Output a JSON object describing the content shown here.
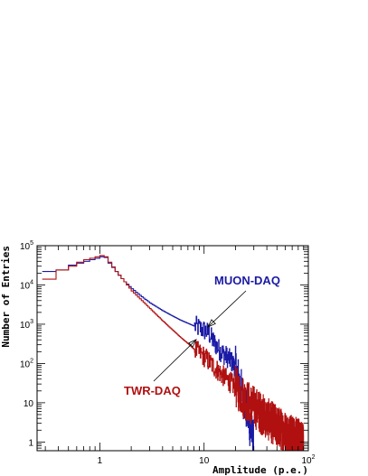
{
  "chart_data": {
    "type": "line",
    "title": "",
    "xlabel": "Amplitude (p.e.)",
    "ylabel": "Number of Entries",
    "x_scale": "log",
    "y_scale": "log",
    "xlim": [
      0.25,
      100
    ],
    "ylim": [
      0.6,
      100000
    ],
    "grid": false,
    "legend": "none",
    "x_tick_labels": [
      {
        "value": 1,
        "label": "1"
      },
      {
        "value": 10,
        "label": "10"
      },
      {
        "value": 100,
        "label": "10",
        "exp": "2"
      }
    ],
    "y_tick_labels": [
      {
        "value": 1,
        "label": "1"
      },
      {
        "value": 10,
        "label": "10"
      },
      {
        "value": 100,
        "label": "10",
        "exp": "2"
      },
      {
        "value": 1000,
        "label": "10",
        "exp": "3"
      },
      {
        "value": 10000,
        "label": "10",
        "exp": "4"
      },
      {
        "value": 100000,
        "label": "10",
        "exp": "5"
      }
    ],
    "series": [
      {
        "name": "MUON-DAQ",
        "color": "#1a1aa6",
        "x": [
          0.28,
          0.38,
          0.5,
          0.6,
          0.7,
          0.8,
          0.9,
          1.0,
          1.1,
          1.2,
          1.4,
          1.7,
          2.0,
          2.5,
          3.0,
          4.0,
          5.0,
          6.0,
          7.0,
          8.0,
          9.0,
          10.0,
          11.0,
          12.0,
          14.0,
          16.0,
          18.0,
          20.0,
          22.0,
          25.0,
          28.0,
          30.0
        ],
        "y": [
          22000,
          24000,
          32000,
          36000,
          40000,
          44000,
          48000,
          52000,
          50000,
          36000,
          22000,
          12000,
          8000,
          5000,
          3500,
          2200,
          1600,
          1250,
          1050,
          900,
          800,
          700,
          600,
          400,
          220,
          160,
          120,
          80,
          30,
          8,
          2,
          1
        ]
      },
      {
        "name": "TWR-DAQ",
        "color": "#b01010",
        "x": [
          0.28,
          0.38,
          0.5,
          0.6,
          0.7,
          0.8,
          0.9,
          1.0,
          1.1,
          1.2,
          1.4,
          1.7,
          2.0,
          2.5,
          3.0,
          4.0,
          5.0,
          6.0,
          7.0,
          8.0,
          10.0,
          12.0,
          15.0,
          20.0,
          25.0,
          30.0,
          40.0,
          50.0,
          60.0,
          70.0,
          80.0,
          90.0
        ],
        "y": [
          14000,
          24000,
          30000,
          38000,
          44000,
          48000,
          52000,
          56000,
          52000,
          38000,
          22000,
          12000,
          7000,
          4000,
          2500,
          1200,
          700,
          450,
          320,
          230,
          150,
          90,
          50,
          25,
          12,
          8,
          4,
          2.5,
          1.8,
          1.4,
          1.2,
          1
        ]
      }
    ],
    "annotations": [
      {
        "text": "MUON-DAQ",
        "series": 0
      },
      {
        "text": "TWR-DAQ",
        "series": 1
      }
    ]
  }
}
